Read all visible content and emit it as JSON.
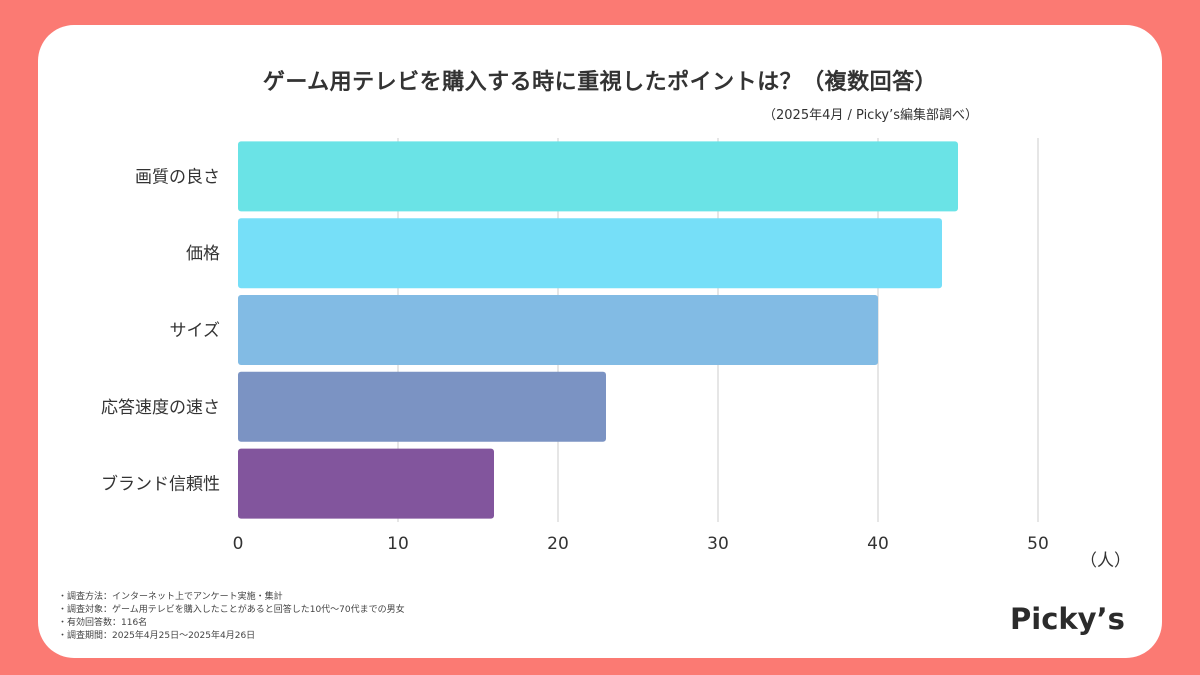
{
  "colors": {
    "background": "#fb7a73",
    "card": "#ffffff",
    "grid": "#cccccc",
    "axis_text": "#333333"
  },
  "chart_data": {
    "type": "bar",
    "orientation": "horizontal",
    "title": "ゲーム用テレビを購入する時に重視したポイントは？（複数回答）",
    "source": "（2025年4月 / Picky’s編集部調べ）",
    "unit_label": "（人）",
    "categories": [
      "画質の良さ",
      "価格",
      "サイズ",
      "応答速度の速さ",
      "ブランド信頼性"
    ],
    "values": [
      45,
      44,
      40,
      23,
      16
    ],
    "bar_colors": [
      "#6ae3e6",
      "#76dff8",
      "#82bbe4",
      "#7b93c3",
      "#82559d"
    ],
    "xlim": [
      0,
      50
    ],
    "xticks": [
      0,
      10,
      20,
      30,
      40,
      50
    ],
    "grid": true
  },
  "notes": [
    "・調査方法：インターネット上でアンケート実施・集計",
    "・調査対象：ゲーム用テレビを購入したことがあると回答した10代〜70代までの男女",
    "・有効回答数：116名",
    "・調査期間：2025年4月25日〜2025年4月26日"
  ],
  "logo": "Picky’s"
}
